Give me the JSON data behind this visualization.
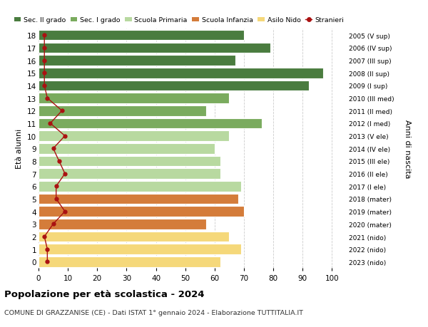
{
  "ages": [
    18,
    17,
    16,
    15,
    14,
    13,
    12,
    11,
    10,
    9,
    8,
    7,
    6,
    5,
    4,
    3,
    2,
    1,
    0
  ],
  "years_labels": [
    "2005 (V sup)",
    "2006 (IV sup)",
    "2007 (III sup)",
    "2008 (II sup)",
    "2009 (I sup)",
    "2010 (III med)",
    "2011 (II med)",
    "2012 (I med)",
    "2013 (V ele)",
    "2014 (IV ele)",
    "2015 (III ele)",
    "2016 (II ele)",
    "2017 (I ele)",
    "2018 (mater)",
    "2019 (mater)",
    "2020 (mater)",
    "2021 (nido)",
    "2022 (nido)",
    "2023 (nido)"
  ],
  "bar_values": [
    70,
    79,
    67,
    97,
    92,
    65,
    57,
    76,
    65,
    60,
    62,
    62,
    69,
    68,
    70,
    57,
    65,
    69,
    62
  ],
  "stranieri_values": [
    2,
    2,
    2,
    2,
    2,
    3,
    8,
    4,
    9,
    5,
    7,
    9,
    6,
    6,
    9,
    5,
    2,
    3,
    3
  ],
  "bar_colors": [
    "#4a7c3f",
    "#4a7c3f",
    "#4a7c3f",
    "#4a7c3f",
    "#4a7c3f",
    "#7aab5e",
    "#7aab5e",
    "#7aab5e",
    "#b8d9a0",
    "#b8d9a0",
    "#b8d9a0",
    "#b8d9a0",
    "#b8d9a0",
    "#d47c3a",
    "#d47c3a",
    "#d47c3a",
    "#f5d87a",
    "#f5d87a",
    "#f5d87a"
  ],
  "legend_labels": [
    "Sec. II grado",
    "Sec. I grado",
    "Scuola Primaria",
    "Scuola Infanzia",
    "Asilo Nido",
    "Stranieri"
  ],
  "legend_colors": [
    "#4a7c3f",
    "#7aab5e",
    "#b8d9a0",
    "#d47c3a",
    "#f5d87a",
    "#cc1111"
  ],
  "stranieri_color": "#aa1111",
  "title": "Popolazione per età scolastica - 2024",
  "subtitle": "COMUNE DI GRAZZANISE (CE) - Dati ISTAT 1° gennaio 2024 - Elaborazione TUTTITALIA.IT",
  "ylabel": "Età alunni",
  "right_ylabel": "Anni di nascita",
  "xlim": [
    0,
    105
  ],
  "xticks": [
    0,
    10,
    20,
    30,
    40,
    50,
    60,
    70,
    80,
    90,
    100
  ],
  "bg_color": "#ffffff",
  "grid_color": "#cccccc"
}
